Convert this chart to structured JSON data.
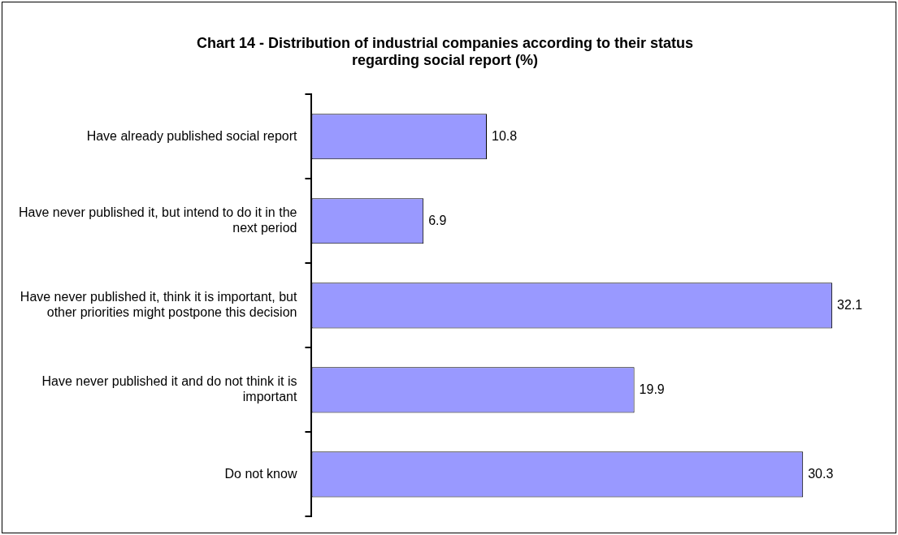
{
  "chart_data": {
    "type": "bar",
    "orientation": "horizontal",
    "title": "Chart 14 - Distribution of industrial companies according to their status regarding social report (%)",
    "categories": [
      "Have already published social report",
      "Have never published it, but intend to do it in the next period",
      "Have never published it, think it is important, but other priorities might postpone this decision",
      "Have never published it and do not think it is important",
      "Do not know"
    ],
    "values": [
      10.8,
      6.9,
      32.1,
      19.9,
      30.3
    ],
    "color": "#9999ff",
    "data_labels": true,
    "tick_labels": "y",
    "legend": false
  }
}
